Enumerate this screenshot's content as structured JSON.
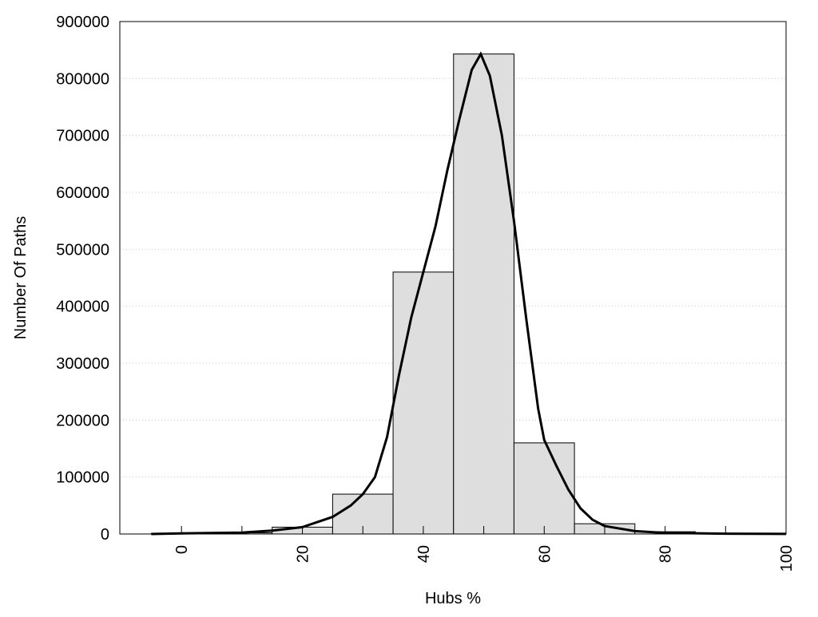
{
  "chart_data": {
    "type": "bar",
    "title": "",
    "xlabel": "Hubs %",
    "ylabel": "Number Of Paths",
    "xlim": [
      -10.2,
      100
    ],
    "ylim": [
      0,
      900000
    ],
    "grid": "horizontal dotted",
    "bin_width": 10,
    "bin_centers": [
      0,
      10,
      20,
      30,
      40,
      50,
      60,
      70,
      80,
      90
    ],
    "values": [
      1000,
      2000,
      12000,
      70000,
      460000,
      843000,
      160000,
      18000,
      4000,
      1000
    ],
    "bar_color": "#dedede",
    "xticks": [
      0,
      20,
      40,
      60,
      80,
      100
    ],
    "xtick_labels": [
      "0",
      "20",
      "40",
      "60",
      "80",
      "100"
    ],
    "yticks": [
      0,
      100000,
      200000,
      300000,
      400000,
      500000,
      600000,
      700000,
      800000,
      900000
    ],
    "ytick_labels": [
      "0",
      "100000",
      "200000",
      "300000",
      "400000",
      "500000",
      "600000",
      "700000",
      "800000",
      "900000"
    ],
    "curve": {
      "x": [
        -5,
        0,
        10,
        15,
        20,
        25,
        28,
        30,
        32,
        34,
        36,
        38,
        40,
        42,
        44,
        46,
        48,
        49.5,
        51,
        53,
        55,
        57,
        59,
        60,
        62,
        64,
        66,
        68,
        70,
        75,
        80,
        90,
        100
      ],
      "y": [
        0,
        1000,
        2500,
        6000,
        12000,
        30000,
        50000,
        70000,
        100000,
        170000,
        280000,
        380000,
        460000,
        540000,
        640000,
        730000,
        815000,
        843000,
        805000,
        700000,
        550000,
        380000,
        220000,
        165000,
        120000,
        78000,
        45000,
        25000,
        14000,
        5000,
        2000,
        500,
        100
      ]
    }
  }
}
